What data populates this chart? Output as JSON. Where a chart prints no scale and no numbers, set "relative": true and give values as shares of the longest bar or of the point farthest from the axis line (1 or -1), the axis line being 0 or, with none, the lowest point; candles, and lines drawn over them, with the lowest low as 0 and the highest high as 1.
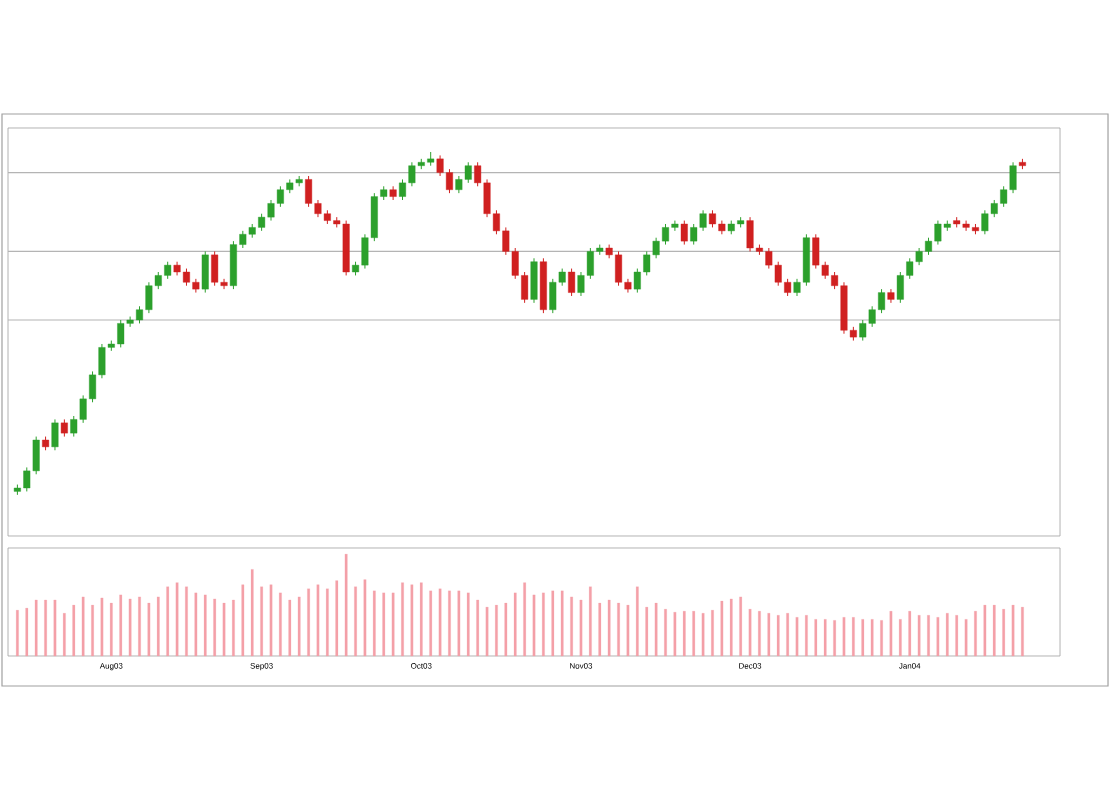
{
  "chart_data": [
    {
      "type": "candlestick",
      "relative": true,
      "categories": [
        null,
        null,
        null,
        null,
        null,
        null,
        null,
        null,
        null,
        null,
        null,
        null,
        null,
        null,
        null,
        null,
        null,
        null,
        null,
        null,
        null,
        null,
        null,
        null,
        null,
        null,
        null,
        null,
        null,
        null,
        null,
        null,
        null,
        null,
        null,
        null,
        null,
        null,
        null,
        null,
        null,
        null,
        null,
        null,
        null,
        null,
        null,
        null,
        null,
        null,
        null,
        null,
        null,
        null,
        null,
        null,
        null,
        null,
        null,
        null,
        null,
        null,
        null,
        null,
        null,
        null,
        null,
        null,
        null,
        null,
        null,
        null,
        null,
        null,
        null,
        null,
        null,
        null,
        null,
        null,
        null,
        null,
        null,
        null,
        null,
        null,
        null,
        null,
        null,
        null,
        null,
        null,
        null,
        null,
        null,
        null,
        null,
        null,
        null,
        null,
        null,
        null,
        null,
        null,
        null,
        null,
        null,
        null
      ],
      "ohlc": [
        [
          0.01,
          0.03,
          0.0,
          0.02
        ],
        [
          0.02,
          0.08,
          0.01,
          0.07
        ],
        [
          0.07,
          0.17,
          0.06,
          0.16
        ],
        [
          0.16,
          0.17,
          0.13,
          0.14
        ],
        [
          0.14,
          0.22,
          0.13,
          0.21
        ],
        [
          0.21,
          0.22,
          0.17,
          0.18
        ],
        [
          0.18,
          0.23,
          0.17,
          0.22
        ],
        [
          0.22,
          0.29,
          0.21,
          0.28
        ],
        [
          0.28,
          0.36,
          0.27,
          0.35
        ],
        [
          0.35,
          0.44,
          0.34,
          0.43
        ],
        [
          0.43,
          0.45,
          0.42,
          0.44
        ],
        [
          0.44,
          0.51,
          0.43,
          0.5
        ],
        [
          0.5,
          0.52,
          0.49,
          0.51
        ],
        [
          0.51,
          0.55,
          0.5,
          0.54
        ],
        [
          0.54,
          0.62,
          0.53,
          0.61
        ],
        [
          0.61,
          0.65,
          0.6,
          0.64
        ],
        [
          0.64,
          0.68,
          0.63,
          0.67
        ],
        [
          0.67,
          0.68,
          0.64,
          0.65
        ],
        [
          0.65,
          0.66,
          0.61,
          0.62
        ],
        [
          0.62,
          0.63,
          0.59,
          0.6
        ],
        [
          0.6,
          0.71,
          0.59,
          0.7
        ],
        [
          0.7,
          0.71,
          0.61,
          0.62
        ],
        [
          0.62,
          0.63,
          0.6,
          0.61
        ],
        [
          0.61,
          0.74,
          0.6,
          0.73
        ],
        [
          0.73,
          0.77,
          0.72,
          0.76
        ],
        [
          0.76,
          0.79,
          0.75,
          0.78
        ],
        [
          0.78,
          0.82,
          0.77,
          0.81
        ],
        [
          0.81,
          0.86,
          0.8,
          0.85
        ],
        [
          0.85,
          0.9,
          0.84,
          0.89
        ],
        [
          0.89,
          0.92,
          0.88,
          0.91
        ],
        [
          0.91,
          0.93,
          0.9,
          0.92
        ],
        [
          0.92,
          0.93,
          0.84,
          0.85
        ],
        [
          0.85,
          0.86,
          0.81,
          0.82
        ],
        [
          0.82,
          0.83,
          0.79,
          0.8
        ],
        [
          0.8,
          0.81,
          0.78,
          0.79
        ],
        [
          0.79,
          0.8,
          0.64,
          0.65
        ],
        [
          0.65,
          0.68,
          0.64,
          0.67
        ],
        [
          0.67,
          0.76,
          0.66,
          0.75
        ],
        [
          0.75,
          0.88,
          0.74,
          0.87
        ],
        [
          0.87,
          0.9,
          0.86,
          0.89
        ],
        [
          0.89,
          0.9,
          0.86,
          0.87
        ],
        [
          0.87,
          0.92,
          0.86,
          0.91
        ],
        [
          0.91,
          0.97,
          0.9,
          0.96
        ],
        [
          0.96,
          0.98,
          0.95,
          0.97
        ],
        [
          0.97,
          1.0,
          0.96,
          0.98
        ],
        [
          0.98,
          0.99,
          0.93,
          0.94
        ],
        [
          0.94,
          0.95,
          0.88,
          0.89
        ],
        [
          0.89,
          0.93,
          0.88,
          0.92
        ],
        [
          0.92,
          0.97,
          0.91,
          0.96
        ],
        [
          0.96,
          0.97,
          0.9,
          0.91
        ],
        [
          0.91,
          0.92,
          0.81,
          0.82
        ],
        [
          0.82,
          0.83,
          0.76,
          0.77
        ],
        [
          0.77,
          0.78,
          0.7,
          0.71
        ],
        [
          0.71,
          0.72,
          0.63,
          0.64
        ],
        [
          0.64,
          0.65,
          0.56,
          0.57
        ],
        [
          0.57,
          0.69,
          0.56,
          0.68
        ],
        [
          0.68,
          0.69,
          0.53,
          0.54
        ],
        [
          0.54,
          0.63,
          0.53,
          0.62
        ],
        [
          0.62,
          0.66,
          0.61,
          0.65
        ],
        [
          0.65,
          0.66,
          0.58,
          0.59
        ],
        [
          0.59,
          0.65,
          0.58,
          0.64
        ],
        [
          0.64,
          0.72,
          0.63,
          0.71
        ],
        [
          0.71,
          0.73,
          0.7,
          0.72
        ],
        [
          0.72,
          0.73,
          0.69,
          0.7
        ],
        [
          0.7,
          0.71,
          0.61,
          0.62
        ],
        [
          0.62,
          0.63,
          0.59,
          0.6
        ],
        [
          0.6,
          0.66,
          0.59,
          0.65
        ],
        [
          0.65,
          0.71,
          0.64,
          0.7
        ],
        [
          0.7,
          0.75,
          0.69,
          0.74
        ],
        [
          0.74,
          0.79,
          0.73,
          0.78
        ],
        [
          0.78,
          0.8,
          0.77,
          0.79
        ],
        [
          0.79,
          0.8,
          0.73,
          0.74
        ],
        [
          0.74,
          0.79,
          0.73,
          0.78
        ],
        [
          0.78,
          0.83,
          0.77,
          0.82
        ],
        [
          0.82,
          0.83,
          0.78,
          0.79
        ],
        [
          0.79,
          0.8,
          0.76,
          0.77
        ],
        [
          0.77,
          0.8,
          0.76,
          0.79
        ],
        [
          0.79,
          0.81,
          0.78,
          0.8
        ],
        [
          0.8,
          0.81,
          0.71,
          0.72
        ],
        [
          0.72,
          0.73,
          0.7,
          0.71
        ],
        [
          0.71,
          0.72,
          0.66,
          0.67
        ],
        [
          0.67,
          0.68,
          0.61,
          0.62
        ],
        [
          0.62,
          0.63,
          0.58,
          0.59
        ],
        [
          0.59,
          0.63,
          0.58,
          0.62
        ],
        [
          0.62,
          0.76,
          0.61,
          0.75
        ],
        [
          0.75,
          0.76,
          0.66,
          0.67
        ],
        [
          0.67,
          0.68,
          0.63,
          0.64
        ],
        [
          0.64,
          0.65,
          0.6,
          0.61
        ],
        [
          0.61,
          0.62,
          0.47,
          0.48
        ],
        [
          0.48,
          0.49,
          0.45,
          0.46
        ],
        [
          0.46,
          0.51,
          0.45,
          0.5
        ],
        [
          0.5,
          0.55,
          0.49,
          0.54
        ],
        [
          0.54,
          0.6,
          0.53,
          0.59
        ],
        [
          0.59,
          0.6,
          0.56,
          0.57
        ],
        [
          0.57,
          0.65,
          0.56,
          0.64
        ],
        [
          0.64,
          0.69,
          0.63,
          0.68
        ],
        [
          0.68,
          0.72,
          0.67,
          0.71
        ],
        [
          0.71,
          0.75,
          0.7,
          0.74
        ],
        [
          0.74,
          0.8,
          0.73,
          0.79
        ],
        [
          0.78,
          0.8,
          0.77,
          0.79
        ],
        [
          0.8,
          0.81,
          0.78,
          0.79
        ],
        [
          0.79,
          0.8,
          0.77,
          0.78
        ],
        [
          0.78,
          0.79,
          0.76,
          0.77
        ],
        [
          0.77,
          0.83,
          0.76,
          0.82
        ],
        [
          0.82,
          0.86,
          0.81,
          0.85
        ],
        [
          0.85,
          0.9,
          0.84,
          0.89
        ],
        [
          0.89,
          0.97,
          0.88,
          0.96
        ],
        [
          0.97,
          0.98,
          0.95,
          0.96
        ]
      ],
      "ref_lines": [
        {
          "axis": "y",
          "value": 0.94,
          "color": "#b4b4b4"
        },
        {
          "axis": "y",
          "value": 0.71,
          "color": "#b4b4b4"
        },
        {
          "axis": "y",
          "value": 0.51,
          "color": "#b4b4b4"
        }
      ]
    },
    {
      "type": "bar",
      "relative": true,
      "color": "#f4a0a8",
      "categories": [
        null,
        null,
        null,
        null,
        null,
        null,
        null,
        null,
        null,
        null,
        "Aug03",
        null,
        null,
        null,
        null,
        null,
        null,
        null,
        null,
        null,
        null,
        null,
        null,
        null,
        null,
        null,
        "Sep03",
        null,
        null,
        null,
        null,
        null,
        null,
        null,
        null,
        null,
        null,
        null,
        null,
        null,
        null,
        null,
        null,
        "Oct03",
        null,
        null,
        null,
        null,
        null,
        null,
        null,
        null,
        null,
        null,
        null,
        null,
        null,
        null,
        null,
        null,
        "Nov03",
        null,
        null,
        null,
        null,
        null,
        null,
        null,
        null,
        null,
        null,
        null,
        null,
        null,
        null,
        null,
        null,
        null,
        "Dec03",
        null,
        null,
        null,
        null,
        null,
        null,
        null,
        null,
        null,
        null,
        null,
        null,
        null,
        null,
        null,
        null,
        "Jan04",
        null,
        null,
        null,
        null,
        null,
        null,
        null,
        null,
        null,
        null,
        null,
        null
      ],
      "values": [
        0.45,
        0.47,
        0.55,
        0.55,
        0.55,
        0.42,
        0.5,
        0.58,
        0.5,
        0.57,
        0.52,
        0.6,
        0.56,
        0.58,
        0.52,
        0.58,
        0.68,
        0.72,
        0.68,
        0.62,
        0.6,
        0.56,
        0.52,
        0.55,
        0.7,
        0.85,
        0.68,
        0.7,
        0.62,
        0.55,
        0.58,
        0.66,
        0.7,
        0.66,
        0.74,
        1.0,
        0.68,
        0.75,
        0.64,
        0.62,
        0.62,
        0.72,
        0.7,
        0.72,
        0.64,
        0.66,
        0.64,
        0.64,
        0.62,
        0.55,
        0.48,
        0.5,
        0.52,
        0.62,
        0.72,
        0.6,
        0.62,
        0.64,
        0.64,
        0.58,
        0.55,
        0.68,
        0.52,
        0.55,
        0.52,
        0.5,
        0.68,
        0.48,
        0.52,
        0.46,
        0.43,
        0.44,
        0.44,
        0.42,
        0.45,
        0.54,
        0.56,
        0.58,
        0.46,
        0.44,
        0.42,
        0.4,
        0.42,
        0.38,
        0.4,
        0.36,
        0.36,
        0.35,
        0.38,
        0.38,
        0.36,
        0.36,
        0.35,
        0.44,
        0.36,
        0.44,
        0.4,
        0.4,
        0.38,
        0.42,
        0.4,
        0.36,
        0.44,
        0.5,
        0.5,
        0.46,
        0.5,
        0.48
      ]
    }
  ]
}
